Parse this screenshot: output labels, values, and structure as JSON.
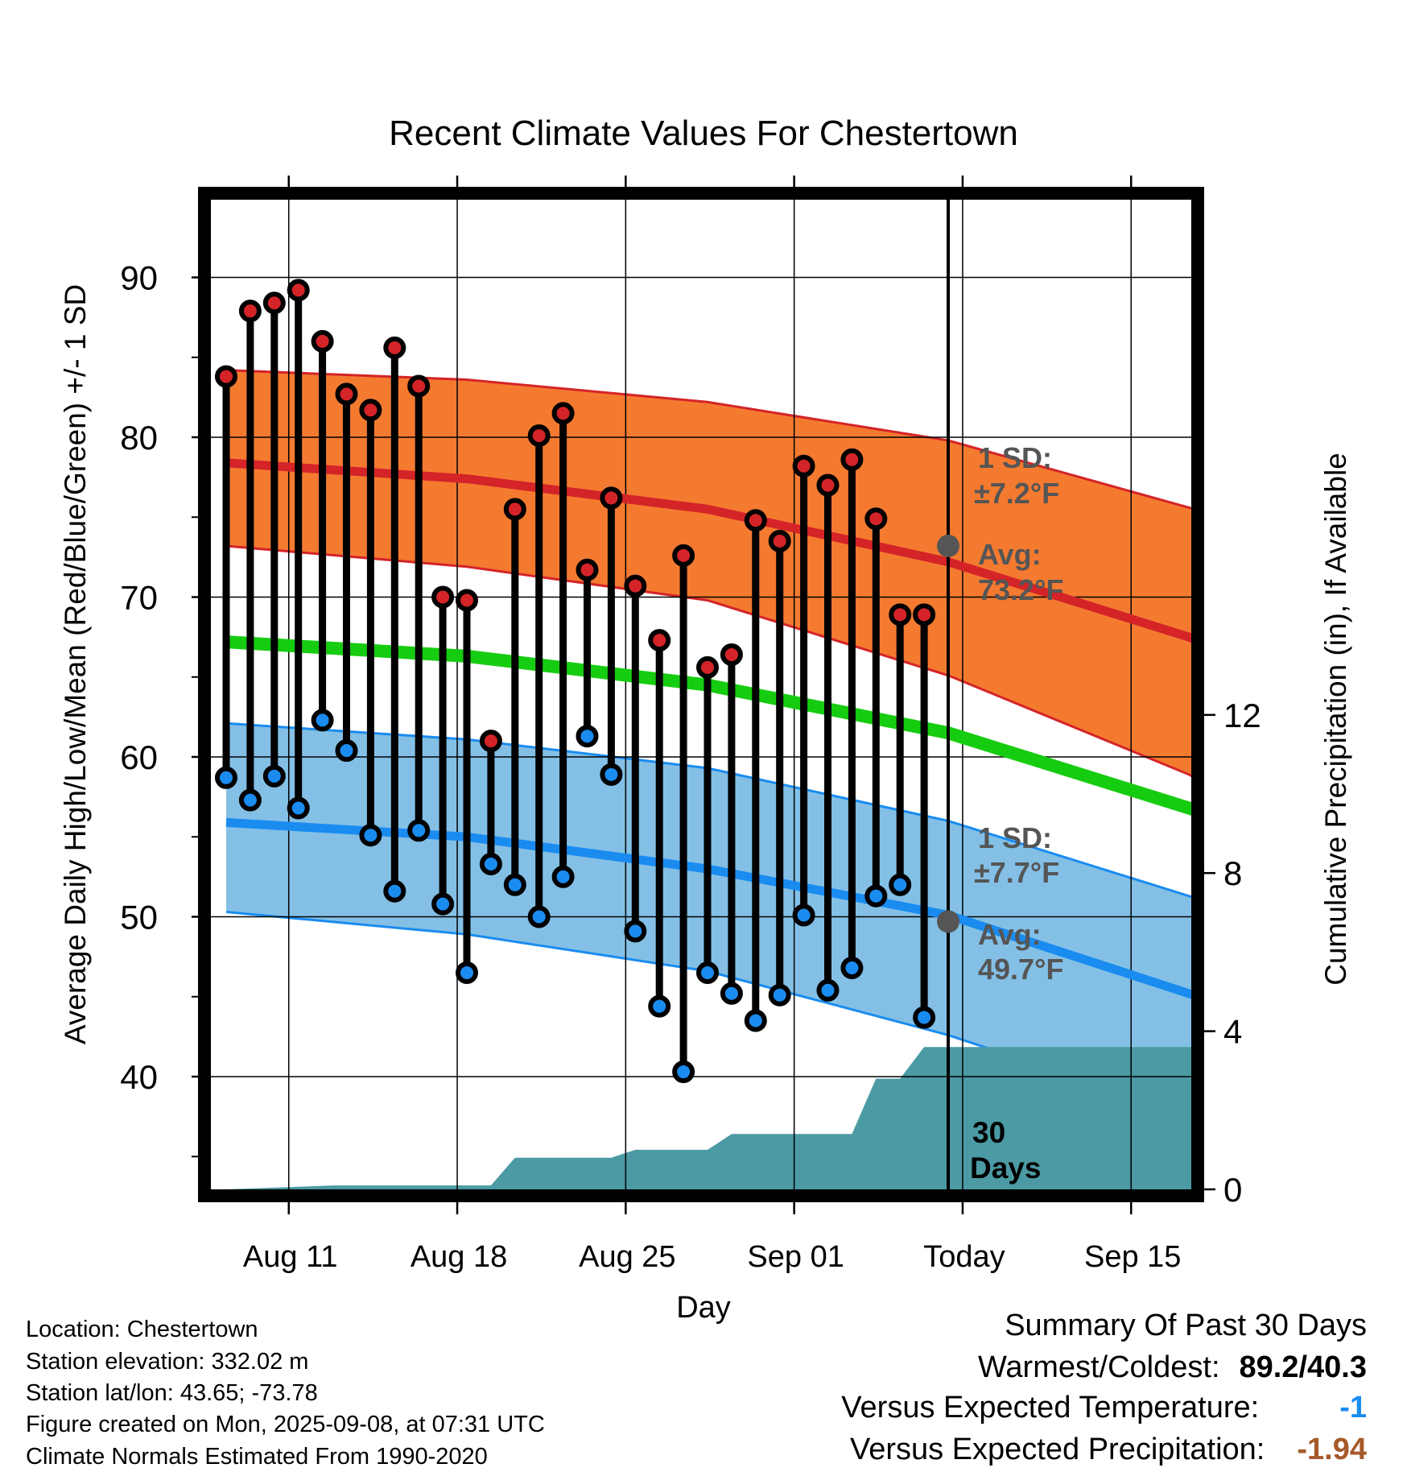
{
  "chart_data": {
    "type": "line",
    "title": "Recent Climate Values For Chestertown",
    "xlabel": "Day",
    "ylabel_left": "Average Daily High/Low/Mean (Red/Blue/Green) +/- 1 SD",
    "ylabel_right": "Cumulative Precipitation (in), If Available",
    "ylim_left": [
      33,
      95
    ],
    "ylim_right": [
      0,
      23.2
    ],
    "yticks_left": [
      "40",
      "50",
      "60",
      "70",
      "80",
      "90"
    ],
    "yticks_right": [
      "0",
      "4",
      "8",
      "12"
    ],
    "xticks": [
      "Aug 11",
      "Aug 18",
      "Aug 25",
      "Sep 01",
      "Today",
      "Sep 15"
    ],
    "grid": true,
    "days": [
      {
        "high": 83.8,
        "low": 58.7
      },
      {
        "high": 87.9,
        "low": 57.3
      },
      {
        "high": 88.4,
        "low": 58.8
      },
      {
        "high": 89.2,
        "low": 56.8
      },
      {
        "high": 86.0,
        "low": 62.3
      },
      {
        "high": 82.7,
        "low": 60.4
      },
      {
        "high": 81.7,
        "low": 55.1
      },
      {
        "high": 85.6,
        "low": 51.6
      },
      {
        "high": 83.2,
        "low": 55.4
      },
      {
        "high": 70.0,
        "low": 50.8
      },
      {
        "high": 69.8,
        "low": 46.5
      },
      {
        "high": 61.0,
        "low": 53.3
      },
      {
        "high": 75.5,
        "low": 52.0
      },
      {
        "high": 80.1,
        "low": 50.0
      },
      {
        "high": 81.5,
        "low": 52.5
      },
      {
        "high": 71.7,
        "low": 61.3
      },
      {
        "high": 76.2,
        "low": 58.9
      },
      {
        "high": 70.7,
        "low": 49.1
      },
      {
        "high": 67.3,
        "low": 44.4
      },
      {
        "high": 72.6,
        "low": 40.3
      },
      {
        "high": 65.6,
        "low": 46.5
      },
      {
        "high": 66.4,
        "low": 45.2
      },
      {
        "high": 74.8,
        "low": 43.5
      },
      {
        "high": 73.5,
        "low": 45.1
      },
      {
        "high": 78.2,
        "low": 50.1
      },
      {
        "high": 77.0,
        "low": 45.4
      },
      {
        "high": 78.6,
        "low": 46.8
      },
      {
        "high": 74.9,
        "low": 51.3
      },
      {
        "high": 68.9,
        "low": 52.0
      },
      {
        "high": 68.9,
        "low": 43.7
      }
    ],
    "normal_high": [
      [
        0,
        78.4
      ],
      [
        10,
        77.4
      ],
      [
        20,
        75.5
      ],
      [
        30,
        72.2
      ],
      [
        40,
        67.5
      ],
      [
        40.8,
        67.0
      ]
    ],
    "high_band_upper": [
      [
        0,
        84.2
      ],
      [
        10,
        83.6
      ],
      [
        20,
        82.2
      ],
      [
        30,
        79.8
      ],
      [
        40,
        75.6
      ],
      [
        40.8,
        75.2
      ]
    ],
    "high_band_lower": [
      [
        0,
        73.2
      ],
      [
        10,
        71.9
      ],
      [
        20,
        69.8
      ],
      [
        30,
        65.1
      ],
      [
        40,
        58.9
      ],
      [
        40.8,
        58.2
      ]
    ],
    "normal_mean": [
      [
        0,
        67.2
      ],
      [
        10,
        66.3
      ],
      [
        20,
        64.5
      ],
      [
        30,
        61.5
      ],
      [
        40,
        56.8
      ],
      [
        40.8,
        56.4
      ]
    ],
    "normal_low": [
      [
        0,
        55.9
      ],
      [
        10,
        55.0
      ],
      [
        20,
        53.0
      ],
      [
        30,
        50.1
      ],
      [
        40,
        45.2
      ],
      [
        40.8,
        44.8
      ]
    ],
    "low_band_upper": [
      [
        0,
        62.1
      ],
      [
        10,
        61.1
      ],
      [
        20,
        59.3
      ],
      [
        30,
        56.0
      ],
      [
        40,
        51.3
      ],
      [
        40.8,
        50.9
      ]
    ],
    "low_band_lower": [
      [
        0,
        50.3
      ],
      [
        10,
        48.9
      ],
      [
        20,
        46.6
      ],
      [
        30,
        42.6
      ],
      [
        40,
        37.6
      ],
      [
        40.8,
        37.1
      ]
    ],
    "precip_cumulative": [
      [
        0,
        0.0
      ],
      [
        4.5,
        0.1
      ],
      [
        11.0,
        0.1
      ],
      [
        12.0,
        0.8
      ],
      [
        16.0,
        0.8
      ],
      [
        17.0,
        1.0
      ],
      [
        20.0,
        1.0
      ],
      [
        21.0,
        1.4
      ],
      [
        26.0,
        1.4
      ],
      [
        27.0,
        2.8
      ],
      [
        28.0,
        2.8
      ],
      [
        29.0,
        3.6
      ],
      [
        40.8,
        3.6
      ]
    ],
    "today_index": 30.0,
    "today_avg_high": 73.2,
    "today_avg_low": 49.7,
    "colors": {
      "high_band": "#f47a30",
      "high_line": "#d42428",
      "low_band": "#84c0e6",
      "low_line": "#1a8cf0",
      "mean_line": "#16cc10",
      "precip": "#4b9aa4",
      "high_marker": "#d42428",
      "low_marker": "#1a8cf0",
      "annotation": "#555555"
    }
  },
  "annotations": {
    "high_sd": "1 SD:",
    "high_sd_value": "±7.2°F",
    "high_avg": "Avg:",
    "high_avg_value": "73.2°F",
    "low_sd": "1 SD:",
    "low_sd_value": "±7.7°F",
    "low_avg": "Avg:",
    "low_avg_value": "49.7°F",
    "precip_days_1": "30",
    "precip_days_2": "Days"
  },
  "info": {
    "location": "Location: Chestertown",
    "elevation": "Station elevation: 332.02 m",
    "latlon": "Station lat/lon: 43.65; -73.78",
    "created": "Figure created on Mon, 2025-09-08, at 07:31 UTC",
    "normals": "Climate Normals Estimated From 1990-2020"
  },
  "summary": {
    "title": "Summary Of Past 30 Days",
    "warmest_label": "Warmest/Coldest:",
    "warmest_value": "89.2/40.3",
    "temp_label": "Versus Expected Temperature:",
    "temp_value": "-1",
    "temp_color": "#1a8cf0",
    "precip_label": "Versus Expected Precipitation:",
    "precip_value": "-1.94",
    "precip_color": "#a65a2a"
  }
}
